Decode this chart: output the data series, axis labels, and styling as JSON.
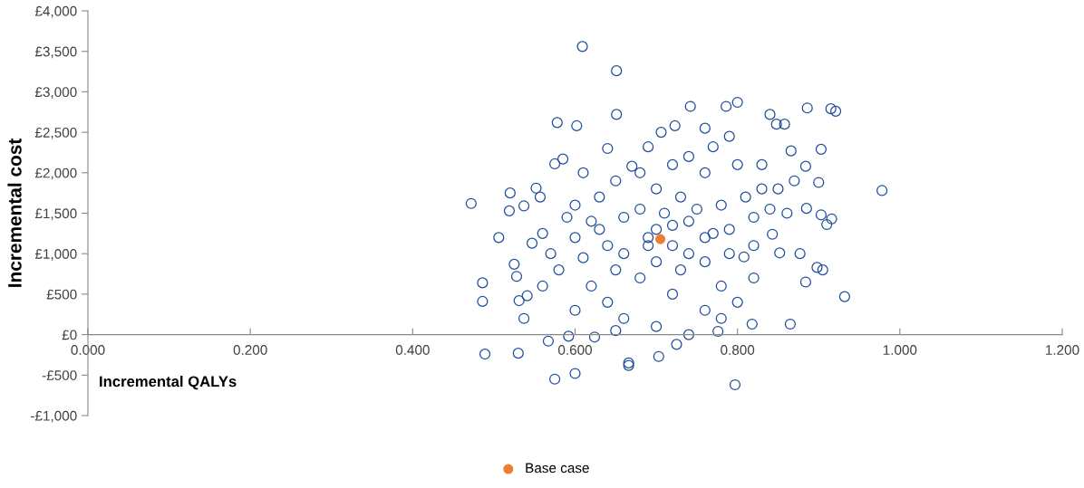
{
  "chart_data": {
    "type": "scatter",
    "xlabel": "Incremental QALYs",
    "ylabel": "Incremental cost",
    "xlim": [
      0,
      1.2
    ],
    "xticks": [
      {
        "value": 0,
        "label": "0.000"
      },
      {
        "value": 0.2,
        "label": "0.200"
      },
      {
        "value": 0.4,
        "label": "0.400"
      },
      {
        "value": 0.6,
        "label": "0.600"
      },
      {
        "value": 0.8,
        "label": "0.800"
      },
      {
        "value": 1.0,
        "label": "1.000"
      },
      {
        "value": 1.2,
        "label": "1.200"
      }
    ],
    "ylim": [
      -1000,
      4000
    ],
    "yticks": [
      {
        "value": -1000,
        "label": "-£1,000"
      },
      {
        "value": -500,
        "label": "-£500"
      },
      {
        "value": 0,
        "label": "£0"
      },
      {
        "value": 500,
        "label": "£500"
      },
      {
        "value": 1000,
        "label": "£1,000"
      },
      {
        "value": 1500,
        "label": "£1,500"
      },
      {
        "value": 2000,
        "label": "£2,000"
      },
      {
        "value": 2500,
        "label": "£2,500"
      },
      {
        "value": 3000,
        "label": "£3,000"
      },
      {
        "value": 3500,
        "label": "£3,500"
      },
      {
        "value": 4000,
        "label": "£4,000"
      }
    ],
    "grid": false,
    "legend": "bottom",
    "marker": "circle",
    "series": [
      {
        "color": "#1f4e99",
        "x": [
          0.609,
          0.651,
          0.472,
          0.486,
          0.486,
          0.489,
          0.53,
          0.575,
          0.6,
          0.797,
          0.978,
          0.932,
          0.915,
          0.921,
          0.886,
          0.8,
          0.786,
          0.578,
          0.602,
          0.651,
          0.506,
          0.519,
          0.52,
          0.537,
          0.552,
          0.557,
          0.525,
          0.528,
          0.531,
          0.537,
          0.541,
          0.547,
          0.56,
          0.575,
          0.585,
          0.567,
          0.592,
          0.624,
          0.666,
          0.666,
          0.703,
          0.725,
          0.74,
          0.776,
          0.865,
          0.818,
          0.898,
          0.905,
          0.903,
          0.91,
          0.916,
          0.9,
          0.903,
          0.884,
          0.885,
          0.884,
          0.877,
          0.861,
          0.858,
          0.866,
          0.84,
          0.848,
          0.83,
          0.83,
          0.843,
          0.852,
          0.82,
          0.808,
          0.79,
          0.78,
          0.76,
          0.77,
          0.742,
          0.723,
          0.706,
          0.69,
          0.67,
          0.65,
          0.63,
          0.62,
          0.6,
          0.61,
          0.58,
          0.57,
          0.62,
          0.64,
          0.66,
          0.68,
          0.7,
          0.72,
          0.74,
          0.76,
          0.78,
          0.8,
          0.76,
          0.72,
          0.69,
          0.71,
          0.73,
          0.75,
          0.77,
          0.79,
          0.81,
          0.82,
          0.66,
          0.64,
          0.65,
          0.7,
          0.68,
          0.74,
          0.76,
          0.7,
          0.72,
          0.68,
          0.66,
          0.63,
          0.6,
          0.59,
          0.61,
          0.64,
          0.72,
          0.74,
          0.79,
          0.8,
          0.76,
          0.84,
          0.85,
          0.87,
          0.82,
          0.78,
          0.7,
          0.65,
          0.6,
          0.56,
          0.69,
          0.73
        ],
        "values": [
          3560,
          3260,
          1620,
          640,
          410,
          -240,
          -230,
          -550,
          -480,
          -620,
          1780,
          470,
          2790,
          2760,
          2800,
          2870,
          2820,
          2620,
          2580,
          2720,
          1200,
          1530,
          1750,
          1590,
          1810,
          1700,
          870,
          720,
          420,
          200,
          480,
          1130,
          1250,
          2110,
          2170,
          -80,
          -20,
          -30,
          -380,
          -350,
          -270,
          -120,
          0,
          40,
          130,
          130,
          830,
          800,
          1480,
          1360,
          1430,
          1880,
          2290,
          2080,
          1560,
          650,
          1000,
          1500,
          2600,
          2270,
          2720,
          2600,
          2100,
          1800,
          1240,
          1010,
          700,
          960,
          1300,
          1600,
          2000,
          2320,
          2820,
          2580,
          2500,
          2320,
          2080,
          1900,
          1700,
          1400,
          1200,
          950,
          800,
          1000,
          600,
          400,
          200,
          700,
          900,
          1100,
          1400,
          900,
          600,
          400,
          300,
          500,
          1200,
          1500,
          1700,
          1550,
          1250,
          1000,
          1700,
          1450,
          1450,
          1100,
          800,
          1800,
          2000,
          1000,
          1200,
          1300,
          1350,
          1550,
          1000,
          1300,
          1600,
          1450,
          2000,
          2300,
          2100,
          2200,
          2450,
          2100,
          2550,
          1550,
          1800,
          1900,
          1100,
          200,
          100,
          50,
          300,
          600,
          1100,
          800
        ]
      },
      {
        "name": "Base case",
        "color": "#ed7d31",
        "x": [
          0.705
        ],
        "values": [
          1180
        ]
      }
    ]
  }
}
